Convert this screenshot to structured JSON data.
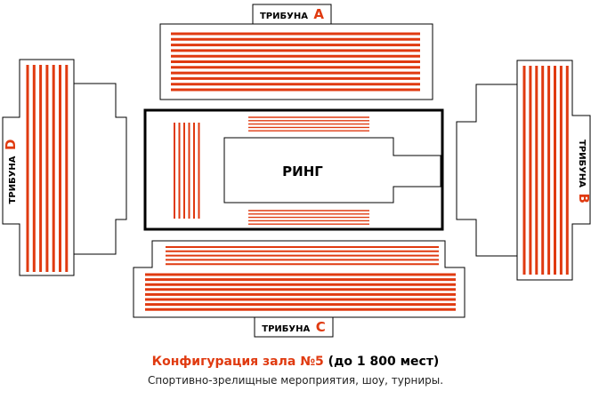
{
  "colors": {
    "accent": "#e03a10",
    "outline": "#000000",
    "background": "#ffffff"
  },
  "stands": {
    "a": {
      "word": "ТРИБУНА",
      "letter": "A"
    },
    "b": {
      "word": "ТРИБУНА",
      "letter": "B"
    },
    "c": {
      "word": "ТРИБУНА",
      "letter": "C"
    },
    "d": {
      "word": "ТРИБУНА",
      "letter": "D"
    }
  },
  "ring": {
    "label": "РИНГ"
  },
  "caption": {
    "title": "Конфигурация зала №5",
    "capacity": "(до 1 800 мест)",
    "subtitle": "Спортивно-зрелищные мероприятия, шоу, турниры."
  }
}
